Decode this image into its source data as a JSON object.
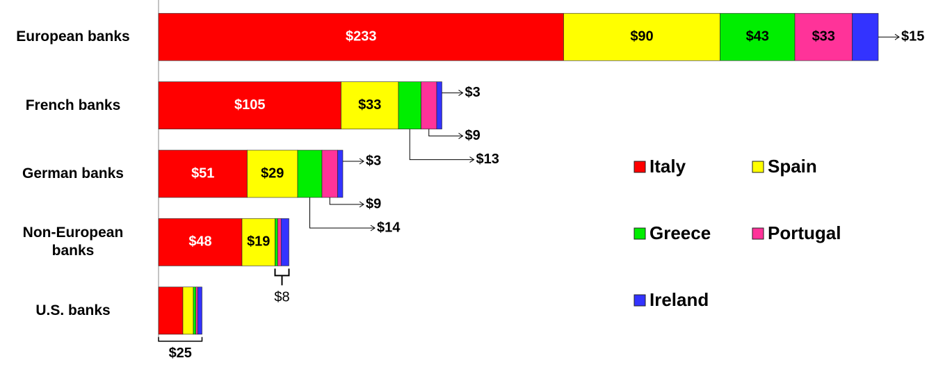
{
  "chart_data": {
    "type": "stacked-bar-horizontal",
    "categories": [
      "European banks",
      "French banks",
      "German banks",
      "Non-European banks",
      "U.S. banks"
    ],
    "series": [
      {
        "name": "Italy",
        "color": "#ff0000",
        "values": [
          233,
          105,
          51,
          48,
          14
        ],
        "value_labels": [
          "$233",
          "$105",
          "$51",
          "$48",
          null
        ]
      },
      {
        "name": "Spain",
        "color": "#ffff00",
        "values": [
          90,
          33,
          29,
          19,
          6
        ],
        "value_labels": [
          "$90",
          "$33",
          "$29",
          "$19",
          null
        ]
      },
      {
        "name": "Greece",
        "color": "#00ee00",
        "values": [
          43,
          13,
          14,
          1.5,
          1.5
        ],
        "value_labels": [
          "$43",
          "$13",
          "$14",
          null,
          null
        ]
      },
      {
        "name": "Portugal",
        "color": "#ff3399",
        "values": [
          33,
          9,
          9,
          2,
          1
        ],
        "value_labels": [
          "$33",
          "$9",
          "$9",
          null,
          null
        ]
      },
      {
        "name": "Ireland",
        "color": "#3333ff",
        "values": [
          15,
          3,
          3,
          4.5,
          2.5
        ],
        "value_labels": [
          "$15",
          "$3",
          "$3",
          null,
          null
        ]
      }
    ],
    "annotations": [
      "$8",
      "$25"
    ],
    "xlim": [
      0,
      440
    ],
    "legend": "right"
  }
}
